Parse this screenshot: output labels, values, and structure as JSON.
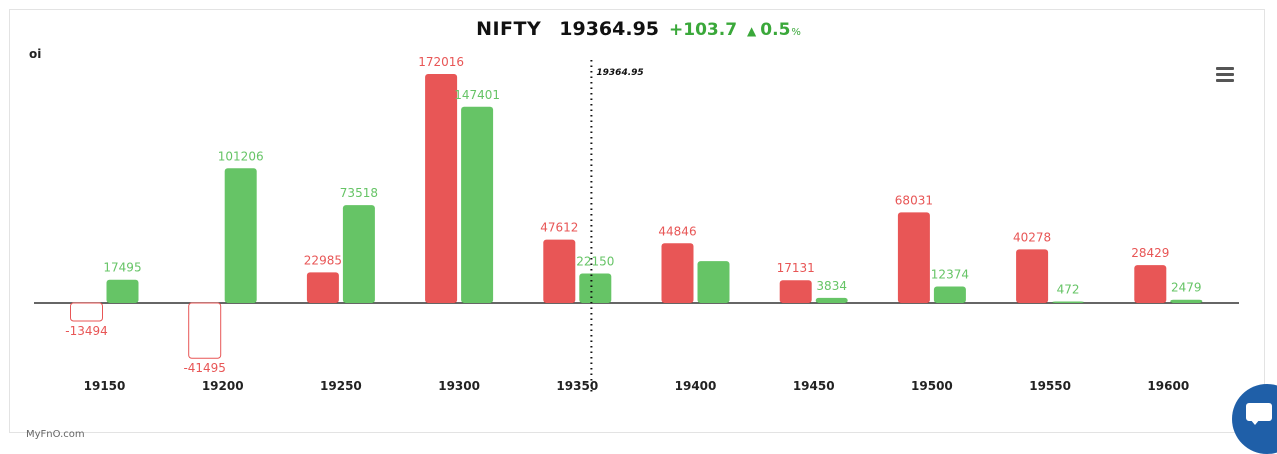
{
  "header": {
    "name": "NIFTY",
    "price": "19364.95",
    "change": "+103.7",
    "arrow_icon": "triangle-up-icon",
    "percent": "0.5",
    "percent_sign": "%"
  },
  "brand": "MyFnO.com",
  "chart_data": {
    "type": "bar",
    "categories": [
      "19150",
      "19200",
      "19250",
      "19300",
      "19350",
      "19400",
      "19450",
      "19500",
      "19550",
      "19600"
    ],
    "series": [
      {
        "color": "#e85656",
        "values": [
          -13494,
          -41495,
          22985,
          172016,
          47612,
          44846,
          17131,
          68031,
          40278,
          28429
        ],
        "labels": [
          "-13494",
          "-41495",
          "22985",
          "172016",
          "47612",
          "44846",
          "17131",
          "68031",
          "40278",
          "28429"
        ]
      },
      {
        "color": "#66c466",
        "values": [
          17495,
          101206,
          73518,
          147401,
          22150,
          31500,
          3834,
          12374,
          472,
          2479
        ],
        "labels": [
          "17495",
          "101206",
          "73518",
          "147401",
          "22150",
          "",
          "3834",
          "12374",
          "472",
          "2479"
        ]
      }
    ],
    "ylabel": "oi",
    "reference_line": {
      "after_category": "19350",
      "label": "19364.95"
    },
    "ylim": [
      -45000,
      180000
    ],
    "grid": false,
    "legend": "none"
  }
}
